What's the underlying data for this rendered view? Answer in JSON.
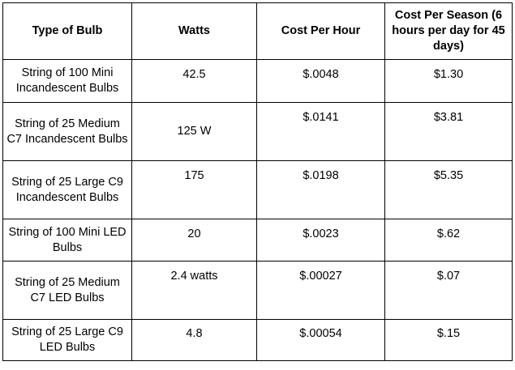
{
  "table": {
    "headers": [
      "Type of Bulb",
      "Watts",
      "Cost Per Hour",
      "Cost Per Season (6 hours per day for 45 days)"
    ],
    "rows": [
      {
        "type": "String of 100 Mini Incandescent Bulbs",
        "watts": "42.5",
        "cost_per_hour": "$.0048",
        "cost_per_season": "$1.30"
      },
      {
        "type": "String of 25 Medium C7 Incandescent Bulbs",
        "watts": "125 W",
        "cost_per_hour": "$.0141",
        "cost_per_season": "$3.81"
      },
      {
        "type": "String of 25 Large C9 Incandescent Bulbs",
        "watts": "175",
        "cost_per_hour": "$.0198",
        "cost_per_season": "$5.35"
      },
      {
        "type": "String of 100 Mini LED Bulbs",
        "watts": "20",
        "cost_per_hour": "$.0023",
        "cost_per_season": "$.62"
      },
      {
        "type": "String of 25 Medium C7 LED Bulbs",
        "watts": "2.4 watts",
        "cost_per_hour": "$.00027",
        "cost_per_season": "$.07"
      },
      {
        "type": "String of 25 Large C9 LED Bulbs",
        "watts": "4.8",
        "cost_per_hour": "$.00054",
        "cost_per_season": "$.15"
      }
    ]
  }
}
